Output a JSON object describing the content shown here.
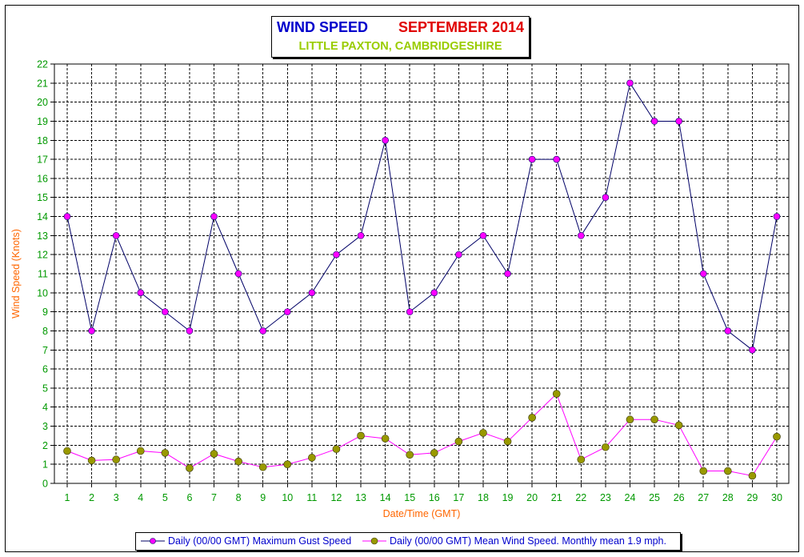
{
  "title": {
    "part1": "WIND SPEED",
    "part2": "SEPTEMBER 2014",
    "subtitle": "LITTLE PAXTON, CAMBRIDGESHIRE"
  },
  "colors": {
    "title_part1": "#0000cc",
    "title_part2": "#e00000",
    "subtitle": "#99cc00",
    "axis_label": "#ff6600",
    "tick_label": "#009900",
    "gust_line": "#000066",
    "gust_marker": "#ff00ff",
    "mean_line": "#ff00ff",
    "mean_marker": "#999900",
    "grid": "#000000",
    "legend_text": "#0000cc"
  },
  "chart_data": {
    "type": "line",
    "xlabel": "Date/Time (GMT)",
    "ylabel": "Wind Speed (Knots)",
    "ylim": [
      0,
      22
    ],
    "grid": true,
    "grid_style": "dashed",
    "legend_position": "bottom",
    "x": [
      1,
      2,
      3,
      4,
      5,
      6,
      7,
      8,
      9,
      10,
      11,
      12,
      13,
      14,
      15,
      16,
      17,
      18,
      19,
      20,
      21,
      22,
      23,
      24,
      25,
      26,
      27,
      28,
      29,
      30
    ],
    "y_ticks": [
      0,
      1,
      2,
      3,
      4,
      5,
      6,
      7,
      8,
      9,
      10,
      11,
      12,
      13,
      14,
      15,
      16,
      17,
      18,
      19,
      20,
      21,
      22
    ],
    "series": [
      {
        "name": "Daily (00/00 GMT) Maximum Gust Speed",
        "values": [
          14,
          8,
          13,
          10,
          9,
          8,
          14,
          11,
          8,
          9,
          10,
          12,
          13,
          18,
          9,
          10,
          12,
          13,
          11,
          17,
          17,
          13,
          15,
          21,
          19,
          19,
          11,
          8,
          7,
          14
        ]
      },
      {
        "name": "Daily (00/00 GMT) Mean Wind Speed. Monthly mean 1.9 mph.",
        "values": [
          1.7,
          1.2,
          1.25,
          1.7,
          1.6,
          0.8,
          1.55,
          1.15,
          0.85,
          1.0,
          1.35,
          1.8,
          2.5,
          2.35,
          1.5,
          1.6,
          2.2,
          2.65,
          2.2,
          3.45,
          4.7,
          1.25,
          1.9,
          3.35,
          3.35,
          3.05,
          0.65,
          0.65,
          0.4,
          2.45
        ]
      }
    ]
  }
}
